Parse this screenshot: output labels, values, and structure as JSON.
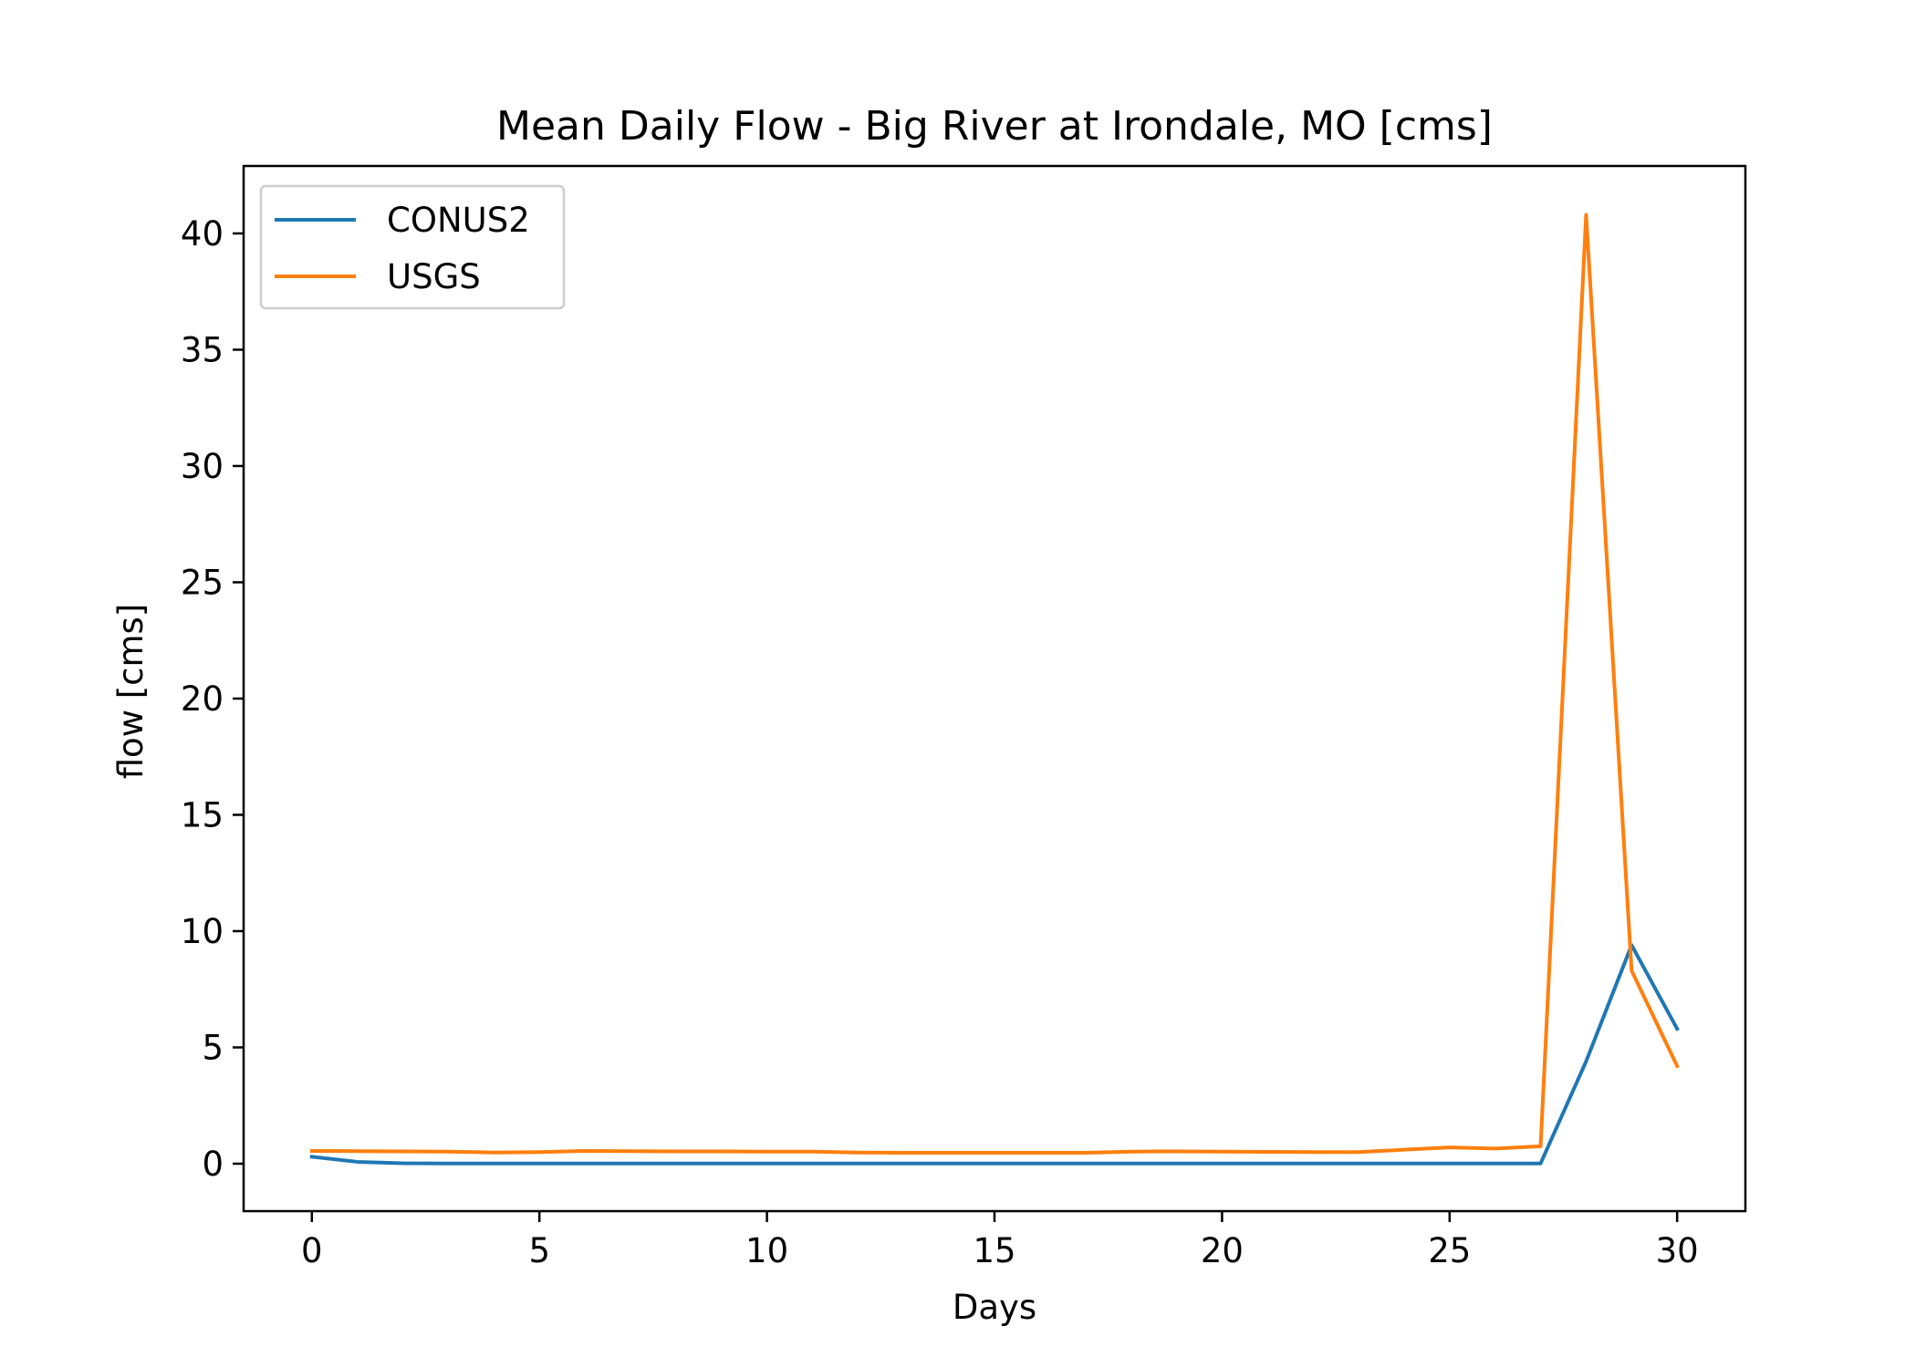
{
  "chart_data": {
    "type": "line",
    "title": "Mean Daily Flow - Big River at Irondale, MO [cms]",
    "xlabel": "Days",
    "ylabel": "flow [cms]",
    "xlim": [
      -1.5,
      31.5
    ],
    "ylim": [
      -2.04,
      42.9
    ],
    "xticks": [
      0,
      5,
      10,
      15,
      20,
      25,
      30
    ],
    "yticks": [
      0,
      5,
      10,
      15,
      20,
      25,
      30,
      35,
      40
    ],
    "grid": false,
    "legend_position": "top-left",
    "x": [
      0,
      1,
      2,
      3,
      4,
      5,
      6,
      7,
      8,
      9,
      10,
      11,
      12,
      13,
      14,
      15,
      16,
      17,
      18,
      19,
      20,
      21,
      22,
      23,
      24,
      25,
      26,
      27,
      28,
      29,
      30
    ],
    "series": [
      {
        "name": "CONUS2",
        "color": "#1f77b4",
        "values": [
          0.3,
          0.08,
          0.02,
          0.01,
          0.01,
          0.01,
          0.01,
          0.01,
          0.01,
          0.01,
          0.01,
          0.01,
          0.01,
          0.01,
          0.01,
          0.01,
          0.01,
          0.01,
          0.01,
          0.01,
          0.01,
          0.01,
          0.01,
          0.01,
          0.01,
          0.01,
          0.01,
          0.01,
          4.4,
          9.4,
          5.8
        ]
      },
      {
        "name": "USGS",
        "color": "#ff7f0e",
        "values": [
          0.55,
          0.54,
          0.53,
          0.52,
          0.48,
          0.5,
          0.55,
          0.54,
          0.53,
          0.53,
          0.52,
          0.52,
          0.48,
          0.47,
          0.47,
          0.47,
          0.47,
          0.47,
          0.52,
          0.53,
          0.52,
          0.51,
          0.5,
          0.5,
          0.6,
          0.7,
          0.65,
          0.75,
          40.8,
          8.3,
          4.2
        ]
      }
    ]
  }
}
